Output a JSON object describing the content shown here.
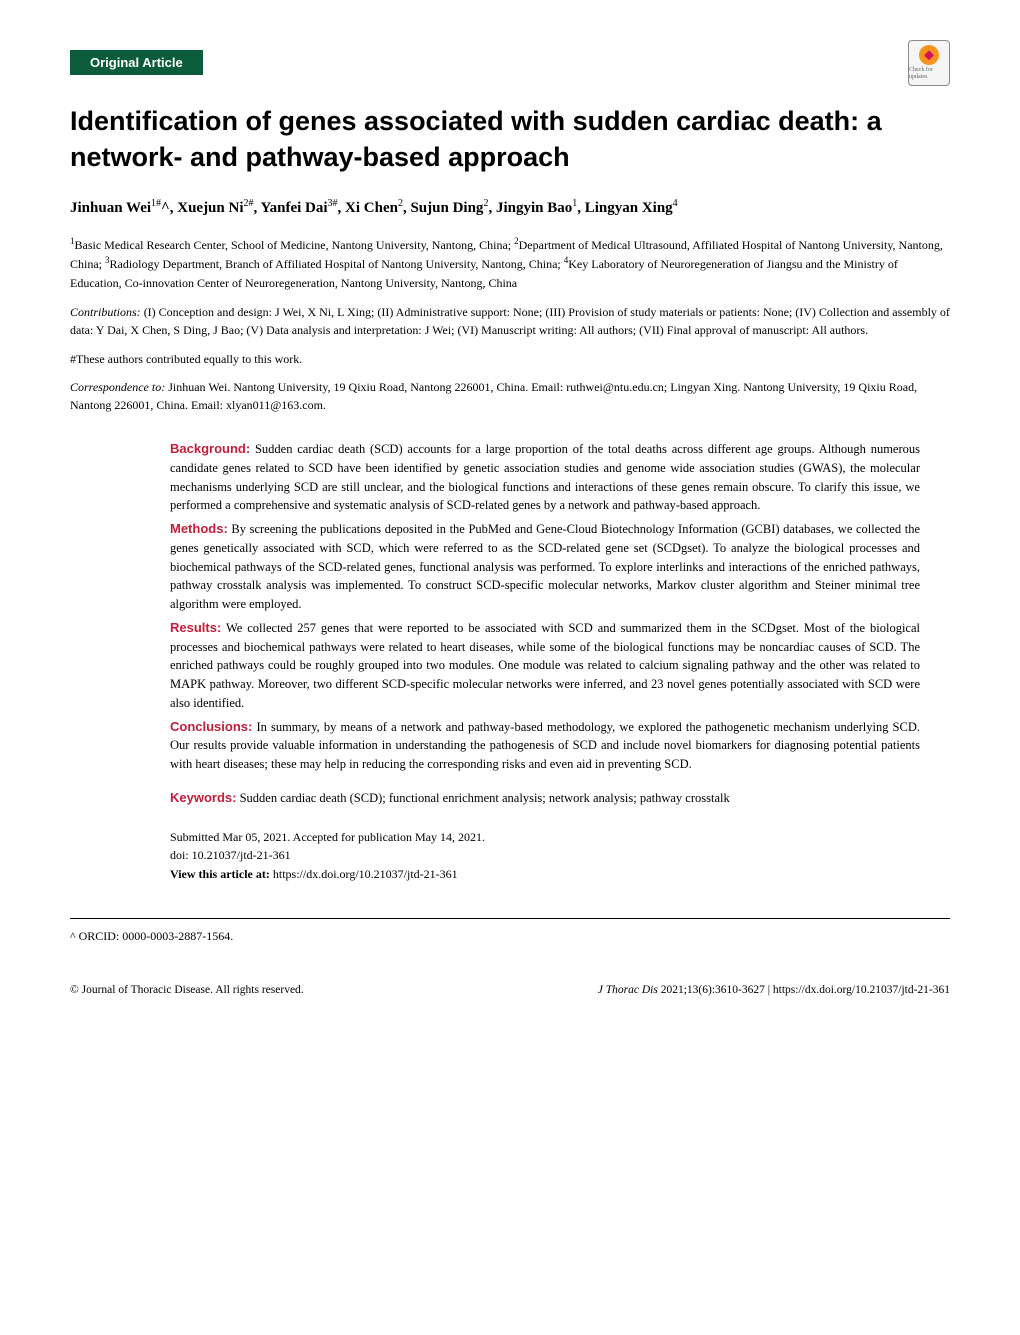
{
  "badge": {
    "text": "Check for updates"
  },
  "articleType": "Original Article",
  "title": "Identification of genes associated with sudden cardiac death: a network- and pathway-based approach",
  "authorsHtml": "Jinhuan Wei<sup>1#</sup>^, Xuejun Ni<sup>2#</sup>, Yanfei Dai<sup>3#</sup>, Xi Chen<sup>2</sup>, Sujun Ding<sup>2</sup>, Jingyin Bao<sup>1</sup>, Lingyan Xing<sup>4</sup>",
  "affiliationsHtml": "<sup>1</sup>Basic Medical Research Center, School of Medicine, Nantong University, Nantong, China; <sup>2</sup>Department of Medical Ultrasound, Affiliated Hospital of Nantong University, Nantong, China; <sup>3</sup>Radiology Department, Branch of Affiliated Hospital of Nantong University, Nantong, China; <sup>4</sup>Key Laboratory of Neuroregeneration of Jiangsu and the Ministry of Education, Co-innovation Center of Neuroregeneration, Nantong University, Nantong, China",
  "contributions": {
    "label": "Contributions:",
    "text": "(I) Conception and design: J Wei, X Ni, L Xing; (II) Administrative support: None; (III) Provision of study materials or patients: None; (IV) Collection and assembly of data: Y Dai, X Chen, S Ding, J Bao; (V) Data analysis and interpretation: J Wei; (VI) Manuscript writing: All authors; (VII) Final approval of manuscript: All authors."
  },
  "equalNote": "#These authors contributed equally to this work.",
  "correspondence": {
    "label": "Correspondence to:",
    "text": "Jinhuan Wei. Nantong University, 19 Qixiu Road, Nantong 226001, China. Email: ruthwei@ntu.edu.cn; Lingyan Xing. Nantong University, 19 Qixiu Road, Nantong 226001, China. Email: xlyan011@163.com."
  },
  "abstract": {
    "background": {
      "label": "Background:",
      "text": "Sudden cardiac death (SCD) accounts for a large proportion of the total deaths across different age groups. Although numerous candidate genes related to SCD have been identified by genetic association studies and genome wide association studies (GWAS), the molecular mechanisms underlying SCD are still unclear, and the biological functions and interactions of these genes remain obscure. To clarify this issue, we performed a comprehensive and systematic analysis of SCD-related genes by a network and pathway-based approach."
    },
    "methods": {
      "label": "Methods:",
      "text": "By screening the publications deposited in the PubMed and Gene-Cloud Biotechnology Information (GCBI) databases, we collected the genes genetically associated with SCD, which were referred to as the SCD-related gene set (SCDgset). To analyze the biological processes and biochemical pathways of the SCD-related genes, functional analysis was performed. To explore interlinks and interactions of the enriched pathways, pathway crosstalk analysis was implemented. To construct SCD-specific molecular networks, Markov cluster algorithm and Steiner minimal tree algorithm were employed."
    },
    "results": {
      "label": "Results:",
      "text": "We collected 257 genes that were reported to be associated with SCD and summarized them in the SCDgset. Most of the biological processes and biochemical pathways were related to heart diseases, while some of the biological functions may be noncardiac causes of SCD. The enriched pathways could be roughly grouped into two modules. One module was related to calcium signaling pathway and the other was related to MAPK pathway. Moreover, two different SCD-specific molecular networks were inferred, and 23 novel genes potentially associated with SCD were also identified."
    },
    "conclusions": {
      "label": "Conclusions:",
      "text": "In summary, by means of a network and pathway-based methodology, we explored the pathogenetic mechanism underlying SCD. Our results provide valuable information in understanding the pathogenesis of SCD and include novel biomarkers for diagnosing potential patients with heart diseases; these may help in reducing the corresponding risks and even aid in preventing SCD."
    },
    "keywords": {
      "label": "Keywords:",
      "text": "Sudden cardiac death (SCD); functional enrichment analysis; network analysis; pathway crosstalk"
    }
  },
  "submission": "Submitted Mar 05, 2021. Accepted for publication May 14, 2021.",
  "doi": "doi: 10.21037/jtd-21-361",
  "viewArticle": {
    "label": "View this article at:",
    "url": "https://dx.doi.org/10.21037/jtd-21-361"
  },
  "orcidNote": "^ ORCID: 0000-0003-2887-1564.",
  "footer": {
    "left": "© Journal of Thoracic Disease. All rights reserved.",
    "centerJournal": "J Thorac Dis",
    "centerRest": "2021;13(6):3610-3627 | https://dx.doi.org/10.21037/jtd-21-361"
  },
  "colors": {
    "badge_bg": "#0a5c3a",
    "heading_red": "#c41e3a",
    "text": "#000000",
    "background": "#ffffff"
  },
  "typography": {
    "title_fontsize": 27,
    "body_fontsize": 12.5,
    "meta_fontsize": 12,
    "authors_fontsize": 15
  }
}
